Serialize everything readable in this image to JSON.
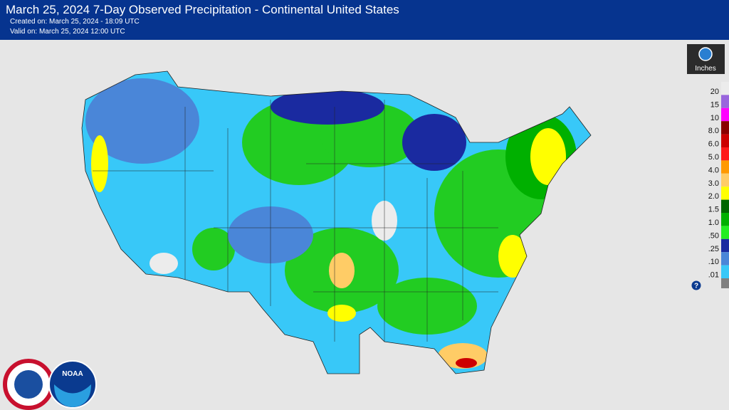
{
  "header": {
    "title": "March 25, 2024 7-Day Observed Precipitation - Continental United States",
    "created": "Created on: March 25, 2024 - 18:09 UTC",
    "valid": "Valid on: March 25, 2024 12:00 UTC"
  },
  "legend": {
    "unit": "Inches",
    "help": "?",
    "items": [
      {
        "label": "20",
        "color": "#ececec"
      },
      {
        "label": "15",
        "color": "#9966dd"
      },
      {
        "label": "10",
        "color": "#ff00ff"
      },
      {
        "label": "8.0",
        "color": "#8a0000"
      },
      {
        "label": "6.0",
        "color": "#cc0000"
      },
      {
        "label": "5.0",
        "color": "#ff1a1a"
      },
      {
        "label": "4.0",
        "color": "#ff9900"
      },
      {
        "label": "3.0",
        "color": "#ffcc66"
      },
      {
        "label": "2.0",
        "color": "#ffff00"
      },
      {
        "label": "1.5",
        "color": "#006600"
      },
      {
        "label": "1.0",
        "color": "#00b000"
      },
      {
        "label": ".50",
        "color": "#22ee22"
      },
      {
        "label": ".25",
        "color": "#1a2aa0"
      },
      {
        "label": ".10",
        "color": "#4a86d8"
      },
      {
        "label": ".01",
        "color": "#38c8f8"
      }
    ]
  },
  "logos": {
    "noaa": "NOAA"
  }
}
